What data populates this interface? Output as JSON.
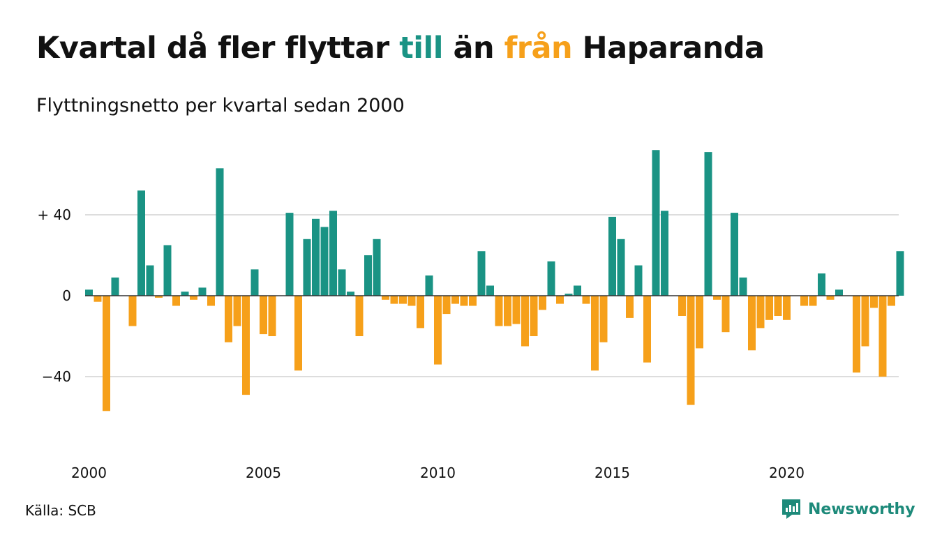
{
  "title": {
    "part1": "Kvartal då fler flyttar ",
    "word_in": "till",
    "part2": " än ",
    "word_out": "från",
    "part3": " Haparanda"
  },
  "subtitle": "Flyttningsnetto per kvartal sedan 2000",
  "source": "Källa: SCB",
  "brand": "Newsworthy",
  "colors": {
    "positive": "#1a9384",
    "negative": "#f6a01a",
    "grid": "#dddddd",
    "axis": "#333333",
    "brand": "#1d8a7a"
  },
  "icons": [
    "newsworthy-logo-icon"
  ],
  "chart_data": {
    "type": "bar",
    "title": "Kvartal då fler flyttar till än från Haparanda",
    "subtitle": "Flyttningsnetto per kvartal sedan 2000",
    "x_start_year": 2000,
    "quarters_per_year": 4,
    "x_tick_labels": [
      "2000",
      "2005",
      "2010",
      "2015",
      "2020"
    ],
    "y_tick_labels": [
      {
        "value": 40,
        "label": "+ 40"
      },
      {
        "value": 0,
        "label": "0"
      },
      {
        "value": -40,
        "label": "−40"
      }
    ],
    "ylim": [
      -72,
      76
    ],
    "grid": true,
    "values": [
      3,
      -3,
      -57,
      9,
      0,
      -15,
      52,
      15,
      -1,
      25,
      -5,
      2,
      -2,
      4,
      -5,
      63,
      -23,
      -15,
      -49,
      13,
      -19,
      -20,
      0,
      41,
      -37,
      28,
      38,
      34,
      42,
      13,
      2,
      -20,
      20,
      28,
      -2,
      -4,
      -4,
      -5,
      -16,
      10,
      -34,
      -9,
      -4,
      -5,
      -5,
      22,
      5,
      -15,
      -15,
      -14,
      -25,
      -20,
      -7,
      17,
      -4,
      1,
      5,
      -4,
      -37,
      -23,
      39,
      28,
      -11,
      15,
      -33,
      72,
      42,
      0,
      -10,
      -54,
      -26,
      71,
      -2,
      -18,
      41,
      9,
      -27,
      -16,
      -12,
      -10,
      -12,
      0,
      -5,
      -5,
      11,
      -2,
      3,
      0,
      -38,
      -25,
      -6,
      -40,
      -5,
      22
    ]
  }
}
